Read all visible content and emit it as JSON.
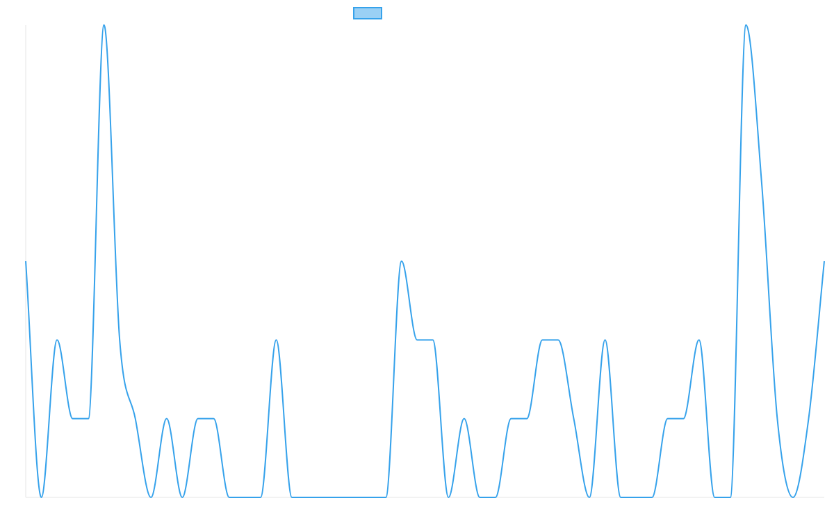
{
  "chart_data": {
    "type": "line",
    "title": "",
    "xlabel": "",
    "ylabel": "",
    "x_ticks_visible": false,
    "y_ticks_visible": false,
    "grid": false,
    "legend": "top-center",
    "ylim": [
      0,
      3
    ],
    "x": [
      0,
      1,
      2,
      3,
      4,
      5,
      6,
      7,
      8,
      9,
      10,
      11,
      12,
      13,
      14,
      15,
      16,
      17,
      18,
      19,
      20,
      21,
      22,
      23,
      24,
      25,
      26,
      27,
      28,
      29,
      30,
      31,
      32,
      33,
      34,
      35,
      36,
      37,
      38,
      39,
      40,
      41,
      42,
      43,
      44,
      45,
      46,
      47,
      48,
      49,
      50,
      51
    ],
    "series": [
      {
        "name": "",
        "color": "#36a2eb",
        "fill": "#9ad0f5",
        "values": [
          1.5,
          0,
          1,
          0.5,
          0.5,
          3,
          1,
          0.5,
          0,
          0.5,
          0,
          0.5,
          0.5,
          0,
          0,
          0,
          1,
          0,
          0,
          0,
          0,
          0,
          0,
          0,
          1.5,
          1,
          1,
          0,
          0.5,
          0,
          0,
          0.5,
          0.5,
          1,
          1,
          0.5,
          0,
          1,
          0,
          0,
          0,
          0.5,
          0.5,
          1,
          0,
          0,
          3,
          2,
          0.5,
          0,
          0.5,
          1.5
        ]
      }
    ]
  }
}
